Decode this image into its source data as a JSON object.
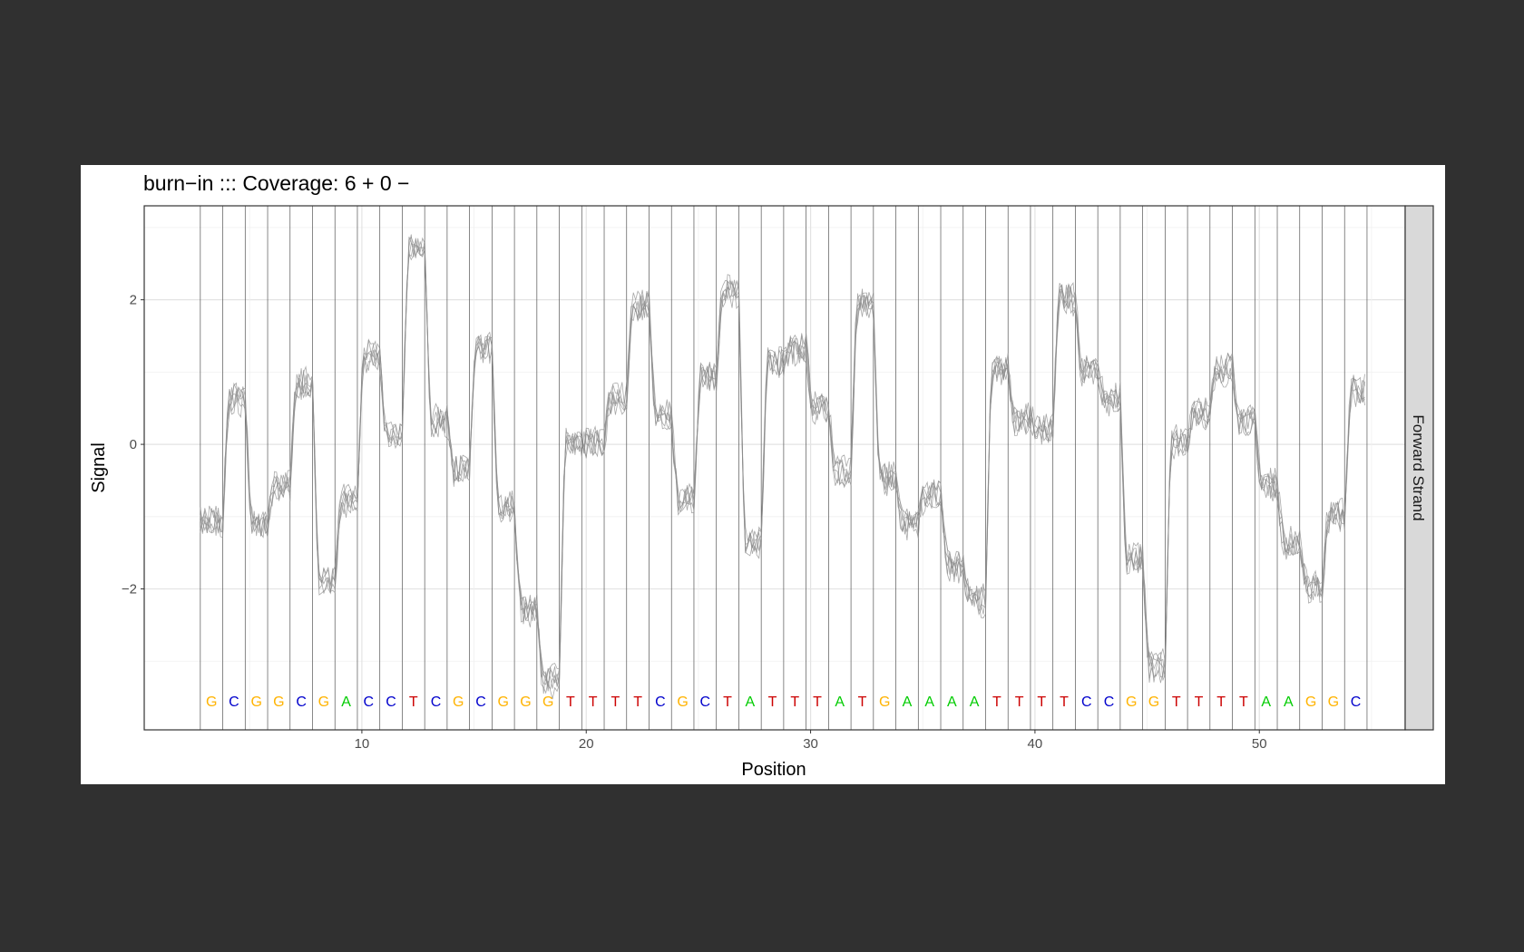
{
  "chart_data": {
    "type": "line",
    "title": "burn−in  ::: Coverage: 6 + 0 −",
    "xlabel": "Position",
    "ylabel": "Signal",
    "facet_label": "Forward Strand",
    "xlim": [
      0.3,
      56.5
    ],
    "ylim": [
      -3.95,
      3.3
    ],
    "x_ticks": [
      10,
      20,
      30,
      40,
      50
    ],
    "y_ticks": [
      2,
      0,
      -2
    ],
    "y_tick_labels": [
      "2",
      "0",
      "−2"
    ],
    "grid": true,
    "n_reads": 6,
    "boundary_start": 2.8,
    "base_width": 1,
    "bases": "GCGGCGACCTCGCGGGTTTTCGCTATTTATGAAAATTTTCCGGTTTTAAGGC",
    "base_y": -3.55,
    "base_colors": {
      "A": "#00cc00",
      "C": "#0000cc",
      "G": "#ffb300",
      "T": "#cc0000"
    },
    "line_color": "#8c8c8c",
    "signal_levels": [
      -1.1,
      0.6,
      -1.1,
      -0.6,
      0.8,
      -1.9,
      -0.8,
      1.2,
      0.1,
      2.7,
      0.3,
      -0.4,
      1.3,
      -0.9,
      -2.3,
      -3.3,
      0.0,
      0.0,
      0.6,
      1.9,
      0.4,
      -0.8,
      0.9,
      2.1,
      -1.4,
      1.1,
      1.3,
      0.5,
      -0.4,
      1.9,
      -0.5,
      -1.1,
      -0.7,
      -1.7,
      -2.2,
      1.0,
      0.3,
      0.2,
      2.0,
      1.0,
      0.6,
      -1.6,
      -3.1,
      0.0,
      0.4,
      1.0,
      0.3,
      -0.6,
      -1.4,
      -2.0,
      -1.0,
      0.7
    ]
  }
}
